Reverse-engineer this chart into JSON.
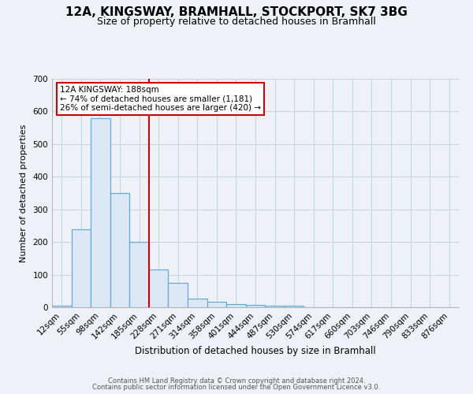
{
  "title1": "12A, KINGSWAY, BRAMHALL, STOCKPORT, SK7 3BG",
  "title2": "Size of property relative to detached houses in Bramhall",
  "xlabel": "Distribution of detached houses by size in Bramhall",
  "ylabel": "Number of detached properties",
  "bin_labels": [
    "12sqm",
    "55sqm",
    "98sqm",
    "142sqm",
    "185sqm",
    "228sqm",
    "271sqm",
    "314sqm",
    "358sqm",
    "401sqm",
    "444sqm",
    "487sqm",
    "530sqm",
    "574sqm",
    "617sqm",
    "660sqm",
    "703sqm",
    "746sqm",
    "790sqm",
    "833sqm",
    "876sqm"
  ],
  "bar_heights": [
    5,
    238,
    580,
    350,
    200,
    115,
    75,
    27,
    17,
    10,
    7,
    6,
    5,
    0,
    0,
    0,
    0,
    0,
    0,
    0,
    0
  ],
  "bar_color": "#dce8f5",
  "bar_edge_color": "#6aaad4",
  "red_line_bin_index": 4,
  "red_line_color": "#cc0000",
  "annotation_title": "12A KINGSWAY: 188sqm",
  "annotation_line1": "← 74% of detached houses are smaller (1,181)",
  "annotation_line2": "26% of semi-detached houses are larger (420) →",
  "annotation_box_color": "#ffffff",
  "annotation_box_edge": "#cc0000",
  "ylim": [
    0,
    700
  ],
  "yticks": [
    0,
    100,
    200,
    300,
    400,
    500,
    600,
    700
  ],
  "grid_color": "#c8d4e0",
  "footer_line1": "Contains HM Land Registry data © Crown copyright and database right 2024.",
  "footer_line2": "Contains public sector information licensed under the Open Government Licence v3.0.",
  "bg_color": "#eef2f7",
  "title1_fontsize": 11,
  "title2_fontsize": 9
}
